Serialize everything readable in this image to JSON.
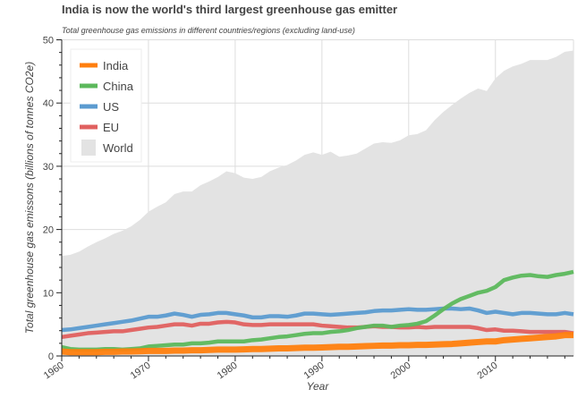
{
  "chart_data": {
    "type": "area+line",
    "title": "India is now the world's third largest greenhouse gas emitter",
    "subtitle": "Total greenhouse gas emissions in different countries/regions (excluding land-use)",
    "xlabel": "Year",
    "ylabel": "Total greenhouse gas emissons (billions of tonnes CO2e)",
    "xlim": [
      1960,
      2019
    ],
    "ylim": [
      0,
      50
    ],
    "xticks": [
      1960,
      1970,
      1980,
      1990,
      2000,
      2010
    ],
    "yticks": [
      0,
      10,
      20,
      30,
      40,
      50
    ],
    "grid": true,
    "legend": "top-left",
    "x_start": 1960,
    "series": [
      {
        "name": "World",
        "kind": "area",
        "color": "#e3e3e3",
        "values": [
          15.8,
          16,
          16.5,
          17.3,
          18,
          18.6,
          19.3,
          19.8,
          20.5,
          21.5,
          22.8,
          23.6,
          24.3,
          25.6,
          26,
          26,
          27,
          27.6,
          28.3,
          29.2,
          28.9,
          28.2,
          28,
          28.3,
          29.2,
          29.8,
          30.2,
          30.9,
          31.8,
          32.2,
          31.8,
          32.3,
          31.5,
          31.7,
          32,
          32.8,
          33.6,
          33.8,
          33.7,
          34.1,
          34.9,
          35.1,
          35.7,
          37.3,
          38.6,
          39.7,
          40.7,
          41.6,
          42.3,
          41.9,
          43.9,
          45.1,
          45.8,
          46.2,
          46.8,
          46.8,
          46.8,
          47.3,
          48.1,
          48.3
        ]
      },
      {
        "name": "US",
        "kind": "line",
        "color": "#5b9bd0",
        "values": [
          4.1,
          4.2,
          4.4,
          4.6,
          4.8,
          5,
          5.2,
          5.4,
          5.6,
          5.9,
          6.2,
          6.2,
          6.4,
          6.7,
          6.5,
          6.2,
          6.5,
          6.6,
          6.8,
          6.8,
          6.6,
          6.4,
          6.1,
          6.1,
          6.3,
          6.3,
          6.2,
          6.4,
          6.7,
          6.7,
          6.6,
          6.5,
          6.6,
          6.7,
          6.8,
          6.9,
          7.1,
          7.2,
          7.2,
          7.3,
          7.4,
          7.3,
          7.3,
          7.4,
          7.5,
          7.5,
          7.4,
          7.5,
          7.2,
          6.8,
          7.0,
          6.8,
          6.6,
          6.8,
          6.8,
          6.7,
          6.6,
          6.6,
          6.8,
          6.6
        ]
      },
      {
        "name": "EU",
        "kind": "line",
        "color": "#e0605f",
        "values": [
          3.0,
          3.2,
          3.4,
          3.6,
          3.7,
          3.8,
          3.9,
          3.9,
          4.1,
          4.3,
          4.5,
          4.6,
          4.8,
          5.0,
          5.0,
          4.8,
          5.1,
          5.1,
          5.3,
          5.4,
          5.3,
          5.0,
          4.9,
          4.9,
          5.0,
          5.0,
          5.0,
          5.0,
          5.0,
          5.0,
          4.8,
          4.7,
          4.6,
          4.5,
          4.5,
          4.6,
          4.7,
          4.6,
          4.6,
          4.5,
          4.5,
          4.6,
          4.5,
          4.6,
          4.6,
          4.6,
          4.6,
          4.6,
          4.4,
          4.1,
          4.2,
          4.0,
          4.0,
          3.9,
          3.8,
          3.8,
          3.8,
          3.8,
          3.8,
          3.6
        ]
      },
      {
        "name": "China",
        "kind": "line",
        "color": "#5cb85c",
        "values": [
          1.4,
          1.1,
          1.0,
          1.0,
          1.0,
          1.1,
          1.1,
          1.0,
          1.1,
          1.2,
          1.5,
          1.6,
          1.7,
          1.8,
          1.8,
          2.0,
          2.0,
          2.1,
          2.3,
          2.3,
          2.3,
          2.3,
          2.5,
          2.6,
          2.8,
          3.0,
          3.1,
          3.3,
          3.5,
          3.6,
          3.6,
          3.8,
          3.9,
          4.1,
          4.4,
          4.6,
          4.8,
          4.8,
          4.6,
          4.8,
          4.9,
          5.1,
          5.5,
          6.4,
          7.4,
          8.3,
          9.0,
          9.5,
          10.0,
          10.3,
          10.9,
          12.0,
          12.4,
          12.7,
          12.8,
          12.6,
          12.5,
          12.8,
          13.0,
          13.3
        ]
      },
      {
        "name": "India",
        "kind": "line",
        "color": "#ff7f0e",
        "values": [
          0.7,
          0.6,
          0.6,
          0.6,
          0.6,
          0.65,
          0.65,
          0.7,
          0.7,
          0.75,
          0.8,
          0.8,
          0.8,
          0.85,
          0.85,
          0.9,
          0.9,
          0.95,
          1.0,
          1.0,
          1.0,
          1.05,
          1.1,
          1.1,
          1.15,
          1.2,
          1.2,
          1.25,
          1.3,
          1.3,
          1.35,
          1.4,
          1.45,
          1.45,
          1.5,
          1.55,
          1.6,
          1.65,
          1.65,
          1.7,
          1.7,
          1.75,
          1.75,
          1.8,
          1.85,
          1.9,
          2.0,
          2.1,
          2.2,
          2.3,
          2.3,
          2.5,
          2.6,
          2.7,
          2.8,
          2.9,
          3.0,
          3.1,
          3.3,
          3.3
        ]
      }
    ]
  }
}
